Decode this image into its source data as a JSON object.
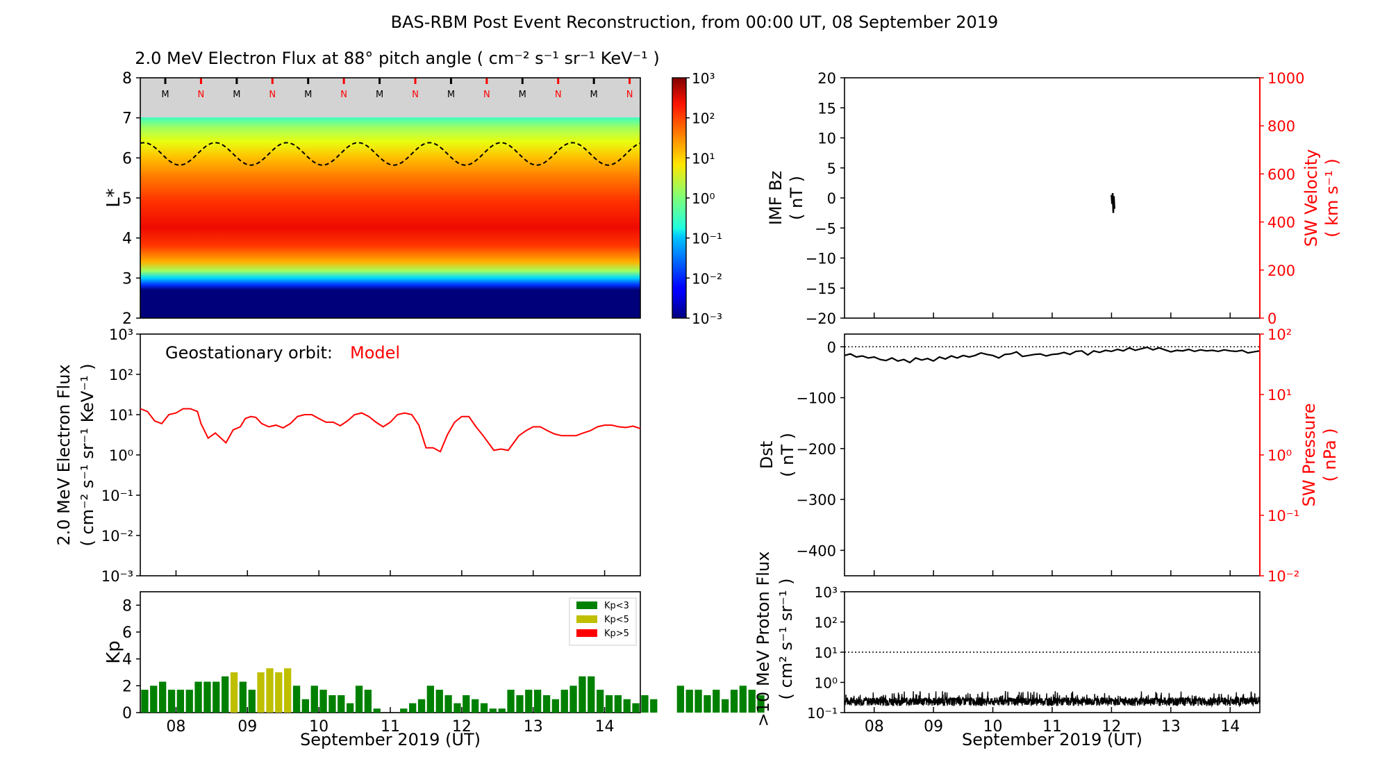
{
  "figure_title": "BAS-RBM Post Event Reconstruction, from 00:00 UT, 08 September 2019",
  "colors": {
    "model_line": "#ff0000",
    "right_axis": "#ff0000",
    "kp_low": "#008000",
    "kp_mid": "#bfbf00",
    "kp_high": "#ff0000",
    "mlt_M": "#000000",
    "mlt_N": "#ff0000",
    "heatmap_top_band": "#d3d3d3"
  },
  "chart_data": [
    {
      "id": "lstar_heatmap",
      "type": "heatmap",
      "title": "2.0 MeV Electron Flux at 88° pitch angle ( cm⁻² s⁻¹ sr⁻¹ KeV⁻¹ )",
      "ylabel": "L*",
      "ylim": [
        2,
        8
      ],
      "y_ticks": [
        "2",
        "3",
        "4",
        "5",
        "6",
        "7",
        "8"
      ],
      "colorbar": {
        "scale": "log",
        "range": [
          0.001,
          1000
        ],
        "tick_labels": [
          "10⁻³",
          "10⁻²",
          "10⁻¹",
          "10⁰",
          "10¹",
          "10²",
          "10³"
        ],
        "colormap": "jet"
      },
      "magnetopause_band_above_L": 7.0,
      "geostationary_dashed_line": {
        "mean_L": 6.1,
        "amplitude_L": 0.28,
        "period_days": 1
      },
      "mlt_markers": [
        "M",
        "N",
        "M",
        "N",
        "M",
        "N",
        "M",
        "N",
        "M",
        "N",
        "M",
        "N",
        "M",
        "N"
      ],
      "flux_profile": {
        "peak_L": 4.0,
        "peak_log10": 2.3,
        "inner_edge_L": 2.7
      }
    },
    {
      "id": "geo_flux",
      "type": "line",
      "annotation_label": "Geostationary orbit:",
      "annotation_value": "Model",
      "ylabel": "2.0 MeV Electron Flux",
      "ylabel_units": "( cm⁻² s⁻¹ sr⁻¹ KeV⁻¹ )",
      "yscale": "log",
      "ylim": [
        0.001,
        1000
      ],
      "y_tick_labels": [
        "10⁻³",
        "10⁻²",
        "10⁻¹",
        "10⁰",
        "10¹",
        "10²",
        "10³"
      ],
      "xlim": [
        -0.5,
        6.5
      ],
      "series": [
        {
          "x": [
            -0.5,
            -0.4,
            -0.3,
            -0.2,
            -0.1,
            0.0,
            0.1,
            0.2,
            0.3,
            0.35,
            0.45,
            0.55,
            0.7,
            0.8,
            0.9,
            0.97,
            1.05,
            1.12,
            1.2,
            1.3,
            1.4,
            1.5,
            1.6,
            1.7,
            1.8,
            1.9,
            2.0,
            2.1,
            2.2,
            2.3,
            2.4,
            2.5,
            2.6,
            2.7,
            2.8,
            2.9,
            3.0,
            3.1,
            3.2,
            3.3,
            3.4,
            3.5,
            3.6,
            3.7,
            3.8,
            3.9,
            4.0,
            4.1,
            4.2,
            4.3,
            4.45,
            4.55,
            4.65,
            4.8,
            4.9,
            5.0,
            5.1,
            5.2,
            5.3,
            5.4,
            5.5,
            5.6,
            5.7,
            5.8,
            5.9,
            6.0,
            6.1,
            6.2,
            6.3,
            6.4,
            6.5
          ],
          "y": [
            14,
            12,
            7,
            6,
            10,
            11,
            14,
            14,
            12,
            6,
            2.6,
            3.5,
            2.0,
            4.2,
            5,
            8,
            9,
            8.5,
            6,
            5,
            5.5,
            4.7,
            6,
            9,
            10,
            10,
            8,
            6.5,
            6.5,
            5.3,
            7,
            10,
            11,
            9,
            6.5,
            5,
            6.5,
            10,
            11,
            10,
            5.5,
            1.5,
            1.5,
            1.2,
            3.2,
            6.5,
            9,
            9,
            5,
            3,
            1.3,
            1.4,
            1.3,
            3,
            4,
            5,
            5,
            4,
            3.3,
            3,
            3,
            3,
            3.5,
            4,
            5,
            5.5,
            5.5,
            5,
            4.8,
            5.2,
            4.5
          ]
        }
      ]
    },
    {
      "id": "kp",
      "type": "bar",
      "ylabel": "Kp",
      "ylim": [
        0,
        9
      ],
      "y_ticks": [
        "0",
        "2",
        "4",
        "6",
        "8"
      ],
      "legend": [
        "Kp<3",
        "Kp<5",
        "Kp>5"
      ],
      "legend_position": "top-right",
      "bar_width_days": 0.1,
      "values": [
        1.7,
        2.0,
        2.3,
        1.7,
        1.7,
        1.7,
        2.3,
        2.3,
        2.3,
        2.7,
        3.0,
        2.3,
        1.7,
        3.0,
        3.3,
        3.0,
        3.3,
        2.0,
        1.0,
        2.0,
        1.7,
        1.3,
        1.3,
        0.7,
        2.0,
        1.7,
        0.3,
        0.0,
        0.0,
        0.3,
        0.7,
        1.0,
        2.0,
        1.7,
        1.3,
        0.7,
        1.3,
        1.0,
        0.7,
        0.3,
        0.3,
        1.7,
        1.3,
        1.7,
        1.7,
        1.3,
        1.0,
        1.7,
        2.0,
        2.7,
        2.7,
        1.7,
        1.3,
        1.3,
        1.0,
        0.7,
        1.3,
        1.0,
        0.0,
        0.0,
        2.0,
        1.7,
        1.7,
        1.3,
        1.7,
        1.0,
        1.7,
        2.0,
        1.7,
        1.3
      ]
    },
    {
      "id": "imf_sw",
      "type": "line",
      "ylabel": "IMF Bz",
      "ylabel_units": "( nT )",
      "ylim": [
        -20,
        20
      ],
      "y_ticks": [
        "−20",
        "−15",
        "−10",
        "−5",
        "0",
        "5",
        "10",
        "15",
        "20"
      ],
      "y2label": "SW Velocity",
      "y2label_units": "( km s⁻¹ )",
      "y2lim": [
        0,
        1000
      ],
      "y2_ticks": [
        "0",
        "200",
        "400",
        "600",
        "800",
        "1000"
      ],
      "xlim": [
        -0.5,
        6.5
      ],
      "series": [
        {
          "x": [
            4.0,
            4.01,
            4.02,
            4.03,
            4.04,
            4.05
          ],
          "y": [
            0.5,
            -1.0,
            0.8,
            -2.5,
            0.3,
            -1.8
          ]
        }
      ]
    },
    {
      "id": "dst_pressure",
      "type": "line",
      "ylabel": "Dst",
      "ylabel_units": "( nT )",
      "ylim": [
        -450,
        25
      ],
      "y_ticks": [
        "−400",
        "−300",
        "−200",
        "−100",
        "0"
      ],
      "y2label": "SW Pressure",
      "y2label_units": "( nPa )",
      "y2scale": "log",
      "y2lim": [
        0.01,
        100
      ],
      "y2_tick_labels": [
        "10⁻²",
        "10⁻¹",
        "10⁰",
        "10¹",
        "10²"
      ],
      "reference_line": 0,
      "xlim": [
        -0.5,
        6.5
      ],
      "series": [
        {
          "x": [
            -0.5,
            -0.4,
            -0.3,
            -0.2,
            -0.1,
            0.0,
            0.1,
            0.2,
            0.3,
            0.4,
            0.5,
            0.6,
            0.7,
            0.8,
            0.9,
            1.0,
            1.1,
            1.2,
            1.3,
            1.4,
            1.5,
            1.6,
            1.7,
            1.8,
            1.9,
            2.0,
            2.1,
            2.2,
            2.3,
            2.4,
            2.5,
            2.6,
            2.7,
            2.8,
            2.9,
            3.0,
            3.1,
            3.2,
            3.3,
            3.4,
            3.5,
            3.6,
            3.7,
            3.8,
            3.9,
            4.0,
            4.1,
            4.2,
            4.3,
            4.4,
            4.5,
            4.6,
            4.7,
            4.8,
            4.9,
            5.0,
            5.1,
            5.2,
            5.3,
            5.4,
            5.5,
            5.6,
            5.7,
            5.8,
            5.9,
            6.0,
            6.1,
            6.2,
            6.3,
            6.4,
            6.5
          ],
          "y": [
            -17,
            -14,
            -20,
            -18,
            -22,
            -20,
            -25,
            -27,
            -22,
            -28,
            -25,
            -31,
            -22,
            -26,
            -23,
            -28,
            -20,
            -24,
            -18,
            -22,
            -17,
            -20,
            -17,
            -12,
            -15,
            -17,
            -22,
            -15,
            -14,
            -10,
            -19,
            -17,
            -15,
            -14,
            -18,
            -15,
            -14,
            -11,
            -15,
            -9,
            -8,
            -16,
            -8,
            -11,
            -7,
            -9,
            -5,
            -8,
            -2,
            -7,
            -4,
            -1,
            -6,
            -2,
            -6,
            -10,
            -7,
            -8,
            -5,
            -9,
            -6,
            -8,
            -7,
            -9,
            -6,
            -8,
            -9,
            -7,
            -12,
            -10,
            -8
          ]
        }
      ]
    },
    {
      "id": "proton_flux",
      "type": "line",
      "ylabel": ">10 MeV Proton Flux",
      "ylabel_units": "( cm² s⁻¹ sr⁻¹ )",
      "yscale": "log",
      "ylim": [
        0.1,
        1000
      ],
      "y_tick_labels": [
        "10⁻¹",
        "10⁰",
        "10¹",
        "10²",
        "10³"
      ],
      "threshold_line": 10,
      "xlim": [
        -0.5,
        6.5
      ],
      "series": [
        {
          "x": [
            -0.5,
            6.5
          ],
          "y": [
            0.22,
            0.22
          ]
        }
      ]
    }
  ],
  "x_axis": {
    "tick_labels": [
      "08",
      "09",
      "10",
      "11",
      "12",
      "13",
      "14"
    ],
    "xlabel": "September 2019 (UT)"
  }
}
